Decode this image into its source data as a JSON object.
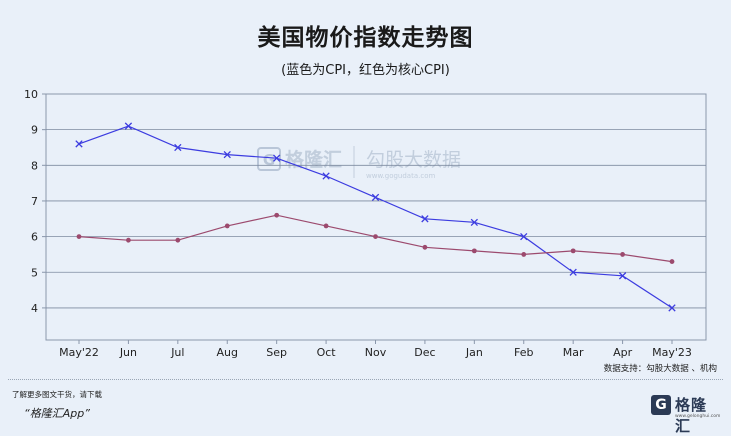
{
  "header": {
    "title": "美国物价指数走势图",
    "subtitle": "(蓝色为CPI，红色为核心CPI)"
  },
  "watermark": {
    "mark": "G",
    "brand": "格隆汇",
    "product": "勾股大数据",
    "url": "www.gogudata.com"
  },
  "source": "数据支持：勾股大数据 、机构",
  "footer": {
    "line1": "了解更多图文干货，请下载",
    "line2": "“格隆汇App”",
    "logo_mark": "G",
    "logo_text": "格隆汇",
    "logo_url": "www.gelonghui.com"
  },
  "colors": {
    "cpi": "#3c3ce0",
    "core_cpi": "#9c4a6e",
    "grid": "#7d8aa0",
    "axis": "#8a97ab"
  },
  "chart_data": {
    "type": "line",
    "title": "美国物价指数走势图",
    "categories": [
      "May'22",
      "Jun",
      "Jul",
      "Aug",
      "Sep",
      "Oct",
      "Nov",
      "Dec",
      "Jan",
      "Feb",
      "Mar",
      "Apr",
      "May'23"
    ],
    "yticks": [
      4,
      5,
      6,
      7,
      8,
      9,
      10
    ],
    "ylim": [
      3.1,
      10
    ],
    "grid": true,
    "series": [
      {
        "key": "cpi",
        "marker": "x",
        "values": [
          8.6,
          9.1,
          8.5,
          8.3,
          8.2,
          7.7,
          7.1,
          6.5,
          6.4,
          6.0,
          5.0,
          4.9,
          4.0
        ]
      },
      {
        "key": "core_cpi",
        "marker": "dot",
        "values": [
          6.0,
          5.9,
          5.9,
          6.3,
          6.6,
          6.3,
          6.0,
          5.7,
          5.6,
          5.5,
          5.6,
          5.5,
          5.3
        ]
      }
    ]
  }
}
